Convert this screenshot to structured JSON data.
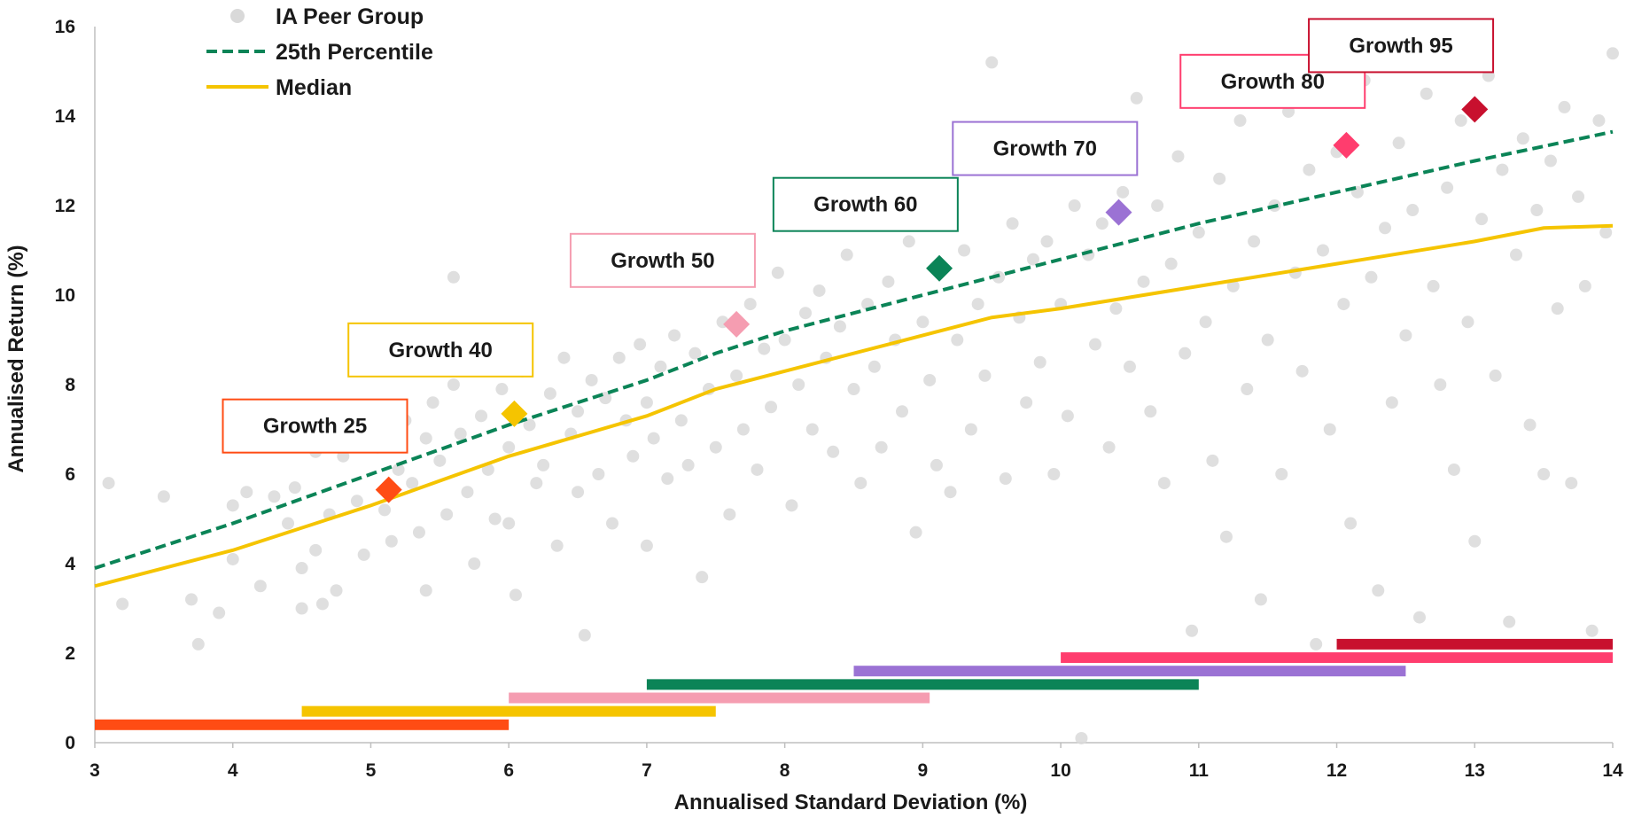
{
  "chart_data": {
    "type": "scatter",
    "title": "",
    "xlabel": "Annualised Standard Deviation (%)",
    "ylabel": "Annualised Return (%)",
    "xlim": [
      3,
      14
    ],
    "ylim": [
      0,
      16
    ],
    "x_ticks": [
      "3",
      "4",
      "5",
      "6",
      "7",
      "8",
      "9",
      "10",
      "11",
      "12",
      "13",
      "14"
    ],
    "y_ticks": [
      "0",
      "2",
      "4",
      "6",
      "8",
      "10",
      "12",
      "14",
      "16"
    ],
    "grid": false,
    "legend_position": "top-left",
    "legend": [
      {
        "label": "IA Peer Group",
        "marker": "circle",
        "color": "#d9d9d9"
      },
      {
        "label": "25th Percentile",
        "marker": "dashed-line",
        "color": "#0b8457"
      },
      {
        "label": "Median",
        "marker": "line",
        "color": "#f5c400"
      }
    ],
    "peer_group": {
      "name": "IA Peer Group",
      "color": "#d9d9d9",
      "points": [
        [
          3.1,
          5.8
        ],
        [
          3.2,
          3.1
        ],
        [
          3.5,
          5.5
        ],
        [
          3.7,
          3.2
        ],
        [
          3.75,
          2.2
        ],
        [
          3.9,
          2.9
        ],
        [
          4.0,
          4.1
        ],
        [
          4.0,
          5.3
        ],
        [
          4.1,
          5.6
        ],
        [
          4.2,
          3.5
        ],
        [
          4.3,
          5.5
        ],
        [
          4.4,
          4.9
        ],
        [
          4.45,
          5.7
        ],
        [
          4.5,
          3.0
        ],
        [
          4.5,
          3.9
        ],
        [
          4.6,
          6.5
        ],
        [
          4.6,
          4.3
        ],
        [
          4.65,
          3.1
        ],
        [
          4.7,
          5.1
        ],
        [
          4.75,
          3.4
        ],
        [
          4.8,
          6.4
        ],
        [
          4.85,
          7.0
        ],
        [
          4.9,
          5.4
        ],
        [
          4.95,
          4.2
        ],
        [
          5.0,
          7.2
        ],
        [
          5.05,
          6.6
        ],
        [
          5.1,
          5.2
        ],
        [
          5.15,
          4.5
        ],
        [
          5.2,
          6.1
        ],
        [
          5.25,
          7.2
        ],
        [
          5.3,
          5.8
        ],
        [
          5.35,
          4.7
        ],
        [
          5.4,
          6.8
        ],
        [
          5.4,
          3.4
        ],
        [
          5.45,
          7.6
        ],
        [
          5.5,
          6.3
        ],
        [
          5.55,
          5.1
        ],
        [
          5.6,
          8.0
        ],
        [
          5.6,
          10.4
        ],
        [
          5.65,
          6.9
        ],
        [
          5.7,
          5.6
        ],
        [
          5.75,
          4.0
        ],
        [
          5.8,
          7.3
        ],
        [
          5.85,
          6.1
        ],
        [
          5.9,
          5.0
        ],
        [
          5.95,
          7.9
        ],
        [
          6.0,
          6.6
        ],
        [
          6.0,
          4.9
        ],
        [
          6.05,
          3.3
        ],
        [
          6.1,
          8.3
        ],
        [
          6.15,
          7.1
        ],
        [
          6.2,
          5.8
        ],
        [
          6.25,
          6.2
        ],
        [
          6.3,
          7.8
        ],
        [
          6.35,
          4.4
        ],
        [
          6.4,
          8.6
        ],
        [
          6.45,
          6.9
        ],
        [
          6.5,
          7.4
        ],
        [
          6.5,
          5.6
        ],
        [
          6.55,
          2.4
        ],
        [
          6.6,
          8.1
        ],
        [
          6.65,
          6.0
        ],
        [
          6.7,
          7.7
        ],
        [
          6.75,
          4.9
        ],
        [
          6.8,
          8.6
        ],
        [
          6.85,
          7.2
        ],
        [
          6.9,
          6.4
        ],
        [
          6.95,
          8.9
        ],
        [
          7.0,
          7.6
        ],
        [
          7.0,
          4.4
        ],
        [
          7.05,
          6.8
        ],
        [
          7.1,
          8.4
        ],
        [
          7.15,
          5.9
        ],
        [
          7.2,
          9.1
        ],
        [
          7.25,
          7.2
        ],
        [
          7.3,
          6.2
        ],
        [
          7.35,
          8.7
        ],
        [
          7.4,
          3.7
        ],
        [
          7.45,
          7.9
        ],
        [
          7.5,
          6.6
        ],
        [
          7.55,
          9.4
        ],
        [
          7.6,
          5.1
        ],
        [
          7.65,
          8.2
        ],
        [
          7.7,
          7.0
        ],
        [
          7.75,
          9.8
        ],
        [
          7.8,
          6.1
        ],
        [
          7.85,
          8.8
        ],
        [
          7.9,
          7.5
        ],
        [
          7.95,
          10.5
        ],
        [
          8.0,
          9.0
        ],
        [
          8.05,
          5.3
        ],
        [
          8.1,
          8.0
        ],
        [
          8.15,
          9.6
        ],
        [
          8.2,
          7.0
        ],
        [
          8.25,
          10.1
        ],
        [
          8.3,
          8.6
        ],
        [
          8.35,
          6.5
        ],
        [
          8.4,
          9.3
        ],
        [
          8.45,
          10.9
        ],
        [
          8.5,
          7.9
        ],
        [
          8.55,
          5.8
        ],
        [
          8.6,
          9.8
        ],
        [
          8.65,
          8.4
        ],
        [
          8.7,
          6.6
        ],
        [
          8.75,
          10.3
        ],
        [
          8.8,
          9.0
        ],
        [
          8.85,
          7.4
        ],
        [
          8.9,
          11.2
        ],
        [
          8.95,
          4.7
        ],
        [
          9.0,
          9.4
        ],
        [
          9.05,
          8.1
        ],
        [
          9.1,
          6.2
        ],
        [
          9.15,
          10.6
        ],
        [
          9.2,
          5.6
        ],
        [
          9.25,
          9.0
        ],
        [
          9.3,
          11.0
        ],
        [
          9.35,
          7.0
        ],
        [
          9.4,
          9.8
        ],
        [
          9.45,
          8.2
        ],
        [
          9.5,
          15.2
        ],
        [
          9.55,
          10.4
        ],
        [
          9.6,
          5.9
        ],
        [
          9.65,
          11.6
        ],
        [
          9.7,
          9.5
        ],
        [
          9.75,
          7.6
        ],
        [
          9.8,
          10.8
        ],
        [
          9.85,
          8.5
        ],
        [
          9.9,
          11.2
        ],
        [
          9.95,
          6.0
        ],
        [
          10.0,
          9.8
        ],
        [
          10.05,
          7.3
        ],
        [
          10.1,
          12.0
        ],
        [
          10.15,
          0.1
        ],
        [
          10.2,
          10.9
        ],
        [
          10.25,
          8.9
        ],
        [
          10.3,
          11.6
        ],
        [
          10.35,
          6.6
        ],
        [
          10.4,
          9.7
        ],
        [
          10.45,
          12.3
        ],
        [
          10.5,
          8.4
        ],
        [
          10.55,
          14.4
        ],
        [
          10.6,
          10.3
        ],
        [
          10.65,
          7.4
        ],
        [
          10.7,
          12.0
        ],
        [
          10.75,
          5.8
        ],
        [
          10.8,
          10.7
        ],
        [
          10.85,
          13.1
        ],
        [
          10.9,
          8.7
        ],
        [
          10.95,
          2.5
        ],
        [
          11.0,
          11.4
        ],
        [
          11.05,
          9.4
        ],
        [
          11.1,
          6.3
        ],
        [
          11.15,
          12.6
        ],
        [
          11.2,
          4.6
        ],
        [
          11.25,
          10.2
        ],
        [
          11.3,
          13.9
        ],
        [
          11.35,
          7.9
        ],
        [
          11.4,
          11.2
        ],
        [
          11.45,
          3.2
        ],
        [
          11.5,
          9.0
        ],
        [
          11.55,
          12.0
        ],
        [
          11.6,
          6.0
        ],
        [
          11.65,
          14.1
        ],
        [
          11.7,
          10.5
        ],
        [
          11.75,
          8.3
        ],
        [
          11.8,
          12.8
        ],
        [
          11.85,
          2.2
        ],
        [
          11.9,
          11.0
        ],
        [
          11.95,
          7.0
        ],
        [
          12.0,
          13.2
        ],
        [
          12.05,
          9.8
        ],
        [
          12.1,
          4.9
        ],
        [
          12.15,
          12.3
        ],
        [
          12.2,
          14.8
        ],
        [
          12.25,
          10.4
        ],
        [
          12.3,
          3.4
        ],
        [
          12.35,
          11.5
        ],
        [
          12.4,
          7.6
        ],
        [
          12.45,
          13.4
        ],
        [
          12.5,
          9.1
        ],
        [
          12.55,
          11.9
        ],
        [
          12.6,
          2.8
        ],
        [
          12.65,
          14.5
        ],
        [
          12.7,
          10.2
        ],
        [
          12.75,
          8.0
        ],
        [
          12.8,
          12.4
        ],
        [
          12.85,
          6.1
        ],
        [
          12.9,
          13.9
        ],
        [
          12.95,
          9.4
        ],
        [
          13.0,
          4.5
        ],
        [
          13.05,
          11.7
        ],
        [
          13.1,
          14.9
        ],
        [
          13.15,
          8.2
        ],
        [
          13.2,
          12.8
        ],
        [
          13.25,
          2.7
        ],
        [
          13.3,
          10.9
        ],
        [
          13.35,
          13.5
        ],
        [
          13.4,
          7.1
        ],
        [
          13.45,
          11.9
        ],
        [
          13.5,
          6.0
        ],
        [
          13.55,
          13.0
        ],
        [
          13.6,
          9.7
        ],
        [
          13.65,
          14.2
        ],
        [
          13.7,
          5.8
        ],
        [
          13.75,
          12.2
        ],
        [
          13.8,
          10.2
        ],
        [
          13.85,
          2.5
        ],
        [
          13.9,
          13.9
        ],
        [
          13.95,
          11.4
        ],
        [
          14.0,
          15.4
        ]
      ]
    },
    "series": [
      {
        "name": "25th Percentile",
        "style": "dashed",
        "color": "#0b8457",
        "x": [
          3.0,
          4.0,
          5.0,
          6.0,
          7.0,
          7.5,
          8.0,
          9.0,
          10.0,
          11.0,
          12.0,
          13.0,
          14.0
        ],
        "values": [
          3.9,
          4.9,
          6.0,
          7.1,
          8.1,
          8.7,
          9.2,
          10.0,
          10.8,
          11.6,
          12.3,
          13.0,
          13.65
        ]
      },
      {
        "name": "Median",
        "style": "solid",
        "color": "#f5c400",
        "x": [
          3.0,
          3.5,
          4.0,
          5.0,
          6.0,
          7.0,
          7.5,
          8.0,
          9.0,
          9.5,
          10.0,
          11.0,
          12.0,
          13.0,
          13.5,
          14.0
        ],
        "values": [
          3.5,
          3.9,
          4.3,
          5.3,
          6.4,
          7.3,
          7.9,
          8.3,
          9.1,
          9.5,
          9.7,
          10.2,
          10.7,
          11.2,
          11.5,
          11.55
        ]
      }
    ],
    "portfolios": [
      {
        "label": "Growth 25",
        "x": 5.13,
        "y": 5.65,
        "color": "#ff4c14",
        "range": [
          3.0,
          6.0
        ]
      },
      {
        "label": "Growth 40",
        "x": 6.04,
        "y": 7.35,
        "color": "#f5c400",
        "range": [
          4.5,
          7.5
        ]
      },
      {
        "label": "Growth 50",
        "x": 7.65,
        "y": 9.35,
        "color": "#f59db1",
        "range": [
          6.0,
          9.05
        ]
      },
      {
        "label": "Growth 60",
        "x": 9.12,
        "y": 10.6,
        "color": "#0b8457",
        "range": [
          7.0,
          11.0
        ]
      },
      {
        "label": "Growth 70",
        "x": 10.42,
        "y": 11.85,
        "color": "#9b72d4",
        "range": [
          8.5,
          12.5
        ]
      },
      {
        "label": "Growth 80",
        "x": 12.07,
        "y": 13.35,
        "color": "#ff3d6e",
        "range": [
          10.0,
          14.0
        ]
      },
      {
        "label": "Growth 95",
        "x": 13.0,
        "y": 14.15,
        "color": "#c8102e",
        "range": [
          12.0,
          14.0
        ]
      }
    ]
  }
}
